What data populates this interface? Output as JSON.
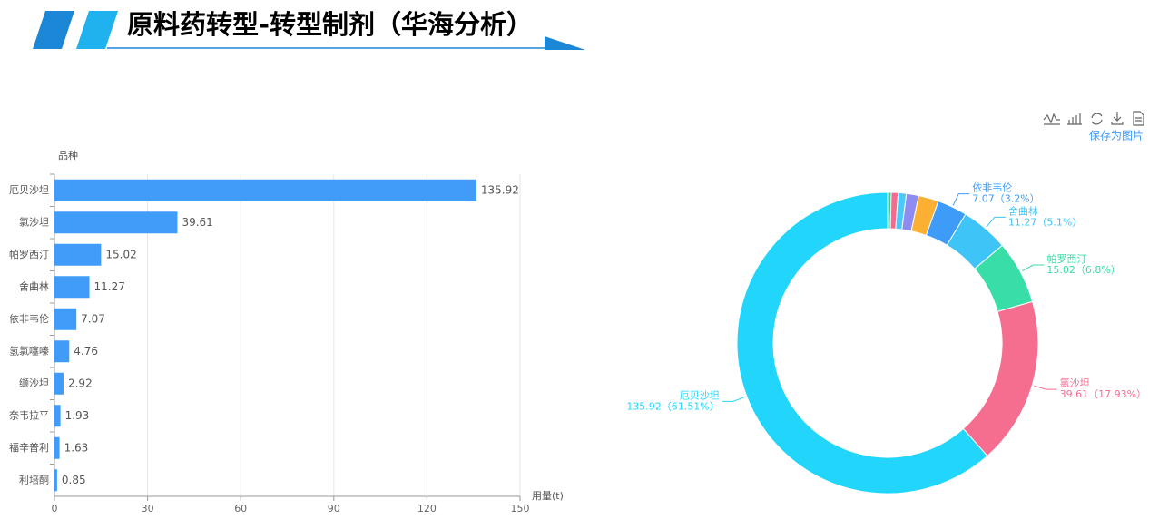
{
  "page_title": "原料药转型-转型制剂（华海分析）",
  "toolbox": {
    "save_label": "保存为图片"
  },
  "chart_data": [
    {
      "type": "bar",
      "orientation": "horizontal",
      "y_label": "品种",
      "x_label": "用量(t)",
      "categories": [
        "厄贝沙坦",
        "氯沙坦",
        "帕罗西汀",
        "舍曲林",
        "依非韦伦",
        "氢氯噻嗪",
        "缬沙坦",
        "奈韦拉平",
        "福辛普利",
        "利培酮"
      ],
      "values": [
        135.92,
        39.61,
        15.02,
        11.27,
        7.07,
        4.76,
        2.92,
        1.93,
        1.63,
        0.85
      ],
      "color": "#409cf8",
      "xlim": [
        0,
        150
      ],
      "xticks": [
        0,
        30,
        60,
        90,
        120,
        150
      ],
      "grid": true
    },
    {
      "type": "pie",
      "donut": true,
      "categories": [
        null,
        null,
        null,
        null,
        null,
        "依非韦伦",
        "舍曲林",
        "帕罗西汀",
        "氯沙坦",
        "厄贝沙坦"
      ],
      "values": [
        0.85,
        1.63,
        1.93,
        2.92,
        4.76,
        7.07,
        11.27,
        15.02,
        39.61,
        135.92
      ],
      "value_labels": [
        null,
        null,
        null,
        null,
        null,
        "7.07（3.2%）",
        "11.27（5.1%）",
        "15.02（6.8%）",
        "39.61（17.93%）",
        "135.92（61.51%）"
      ],
      "colors": [
        "#3ec9a0",
        "#f36c8f",
        "#4cc8f8",
        "#8e8cf0",
        "#fbb034",
        "#3e9cf8",
        "#3fc4f8",
        "#38dda8",
        "#f56e90",
        "#22d6fb"
      ]
    }
  ]
}
